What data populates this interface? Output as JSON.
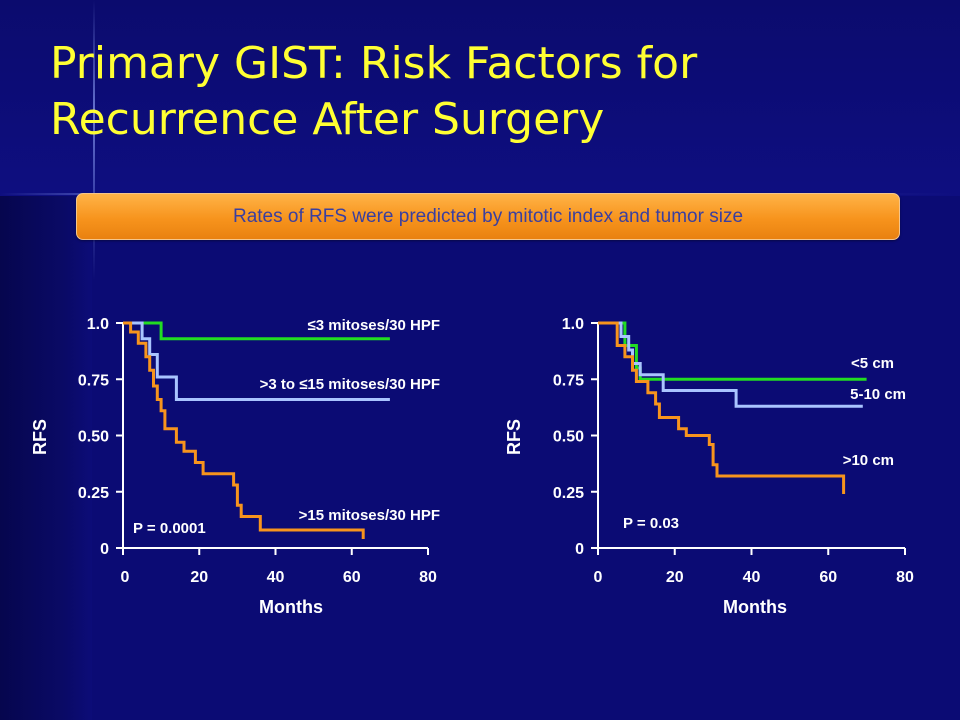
{
  "title": "Primary GIST: Risk Factors for Recurrence After Surgery",
  "banner": "Rates of RFS were predicted by mitotic index and tumor size",
  "colors": {
    "green": "#22dd22",
    "lightblue": "#a9c4ff",
    "orange": "#f7941d",
    "title": "#ffff33"
  },
  "chart_data": [
    {
      "type": "line",
      "subtype": "kaplan-meier step",
      "xlabel": "Months",
      "ylabel": "RFS",
      "xlim": [
        0,
        80
      ],
      "ylim": [
        0,
        1.0
      ],
      "x_tick_labels": [
        "0",
        "20",
        "40",
        "60",
        "80"
      ],
      "y_tick_labels": [
        "0",
        "0.25",
        "0.50",
        "0.75",
        "1.0"
      ],
      "p_value": "P = 0.0001",
      "series": [
        {
          "name": "≤3 mitoses/30 HPF",
          "color": "green",
          "points": [
            [
              0,
              1.0
            ],
            [
              10,
              1.0
            ],
            [
              10,
              0.93
            ],
            [
              70,
              0.93
            ]
          ]
        },
        {
          "name": ">3 to ≤15 mitoses/30 HPF",
          "color": "lightblue",
          "points": [
            [
              0,
              1.0
            ],
            [
              5,
              1.0
            ],
            [
              5,
              0.93
            ],
            [
              7,
              0.93
            ],
            [
              7,
              0.86
            ],
            [
              9,
              0.86
            ],
            [
              9,
              0.76
            ],
            [
              14,
              0.76
            ],
            [
              14,
              0.66
            ],
            [
              70,
              0.66
            ]
          ]
        },
        {
          "name": ">15 mitoses/30 HPF",
          "color": "orange",
          "points": [
            [
              0,
              1.0
            ],
            [
              2,
              1.0
            ],
            [
              2,
              0.96
            ],
            [
              4,
              0.96
            ],
            [
              4,
              0.91
            ],
            [
              6,
              0.91
            ],
            [
              6,
              0.85
            ],
            [
              7,
              0.85
            ],
            [
              7,
              0.79
            ],
            [
              8,
              0.79
            ],
            [
              8,
              0.72
            ],
            [
              9,
              0.72
            ],
            [
              9,
              0.66
            ],
            [
              10,
              0.66
            ],
            [
              10,
              0.61
            ],
            [
              11,
              0.61
            ],
            [
              11,
              0.53
            ],
            [
              14,
              0.53
            ],
            [
              14,
              0.47
            ],
            [
              16,
              0.47
            ],
            [
              16,
              0.43
            ],
            [
              19,
              0.43
            ],
            [
              19,
              0.38
            ],
            [
              21,
              0.38
            ],
            [
              21,
              0.33
            ],
            [
              29,
              0.33
            ],
            [
              29,
              0.28
            ],
            [
              30,
              0.28
            ],
            [
              30,
              0.19
            ],
            [
              31,
              0.19
            ],
            [
              31,
              0.14
            ],
            [
              36,
              0.14
            ],
            [
              36,
              0.08
            ],
            [
              63,
              0.08
            ],
            [
              63,
              0.04
            ]
          ]
        }
      ]
    },
    {
      "type": "line",
      "subtype": "kaplan-meier step",
      "xlabel": "Months",
      "ylabel": "RFS",
      "xlim": [
        0,
        80
      ],
      "ylim": [
        0,
        1.0
      ],
      "x_tick_labels": [
        "0",
        "20",
        "40",
        "60",
        "80"
      ],
      "y_tick_labels": [
        "0",
        "0.25",
        "0.50",
        "0.75",
        "1.0"
      ],
      "p_value": "P = 0.03",
      "series": [
        {
          "name": "<5 cm",
          "color": "green",
          "points": [
            [
              0,
              1.0
            ],
            [
              7,
              1.0
            ],
            [
              7,
              0.9
            ],
            [
              10,
              0.9
            ],
            [
              10,
              0.8
            ],
            [
              11,
              0.8
            ],
            [
              11,
              0.75
            ],
            [
              70,
              0.75
            ]
          ]
        },
        {
          "name": "5-10 cm",
          "color": "lightblue",
          "points": [
            [
              0,
              1.0
            ],
            [
              6,
              1.0
            ],
            [
              6,
              0.94
            ],
            [
              8,
              0.94
            ],
            [
              8,
              0.88
            ],
            [
              9,
              0.88
            ],
            [
              9,
              0.82
            ],
            [
              11,
              0.82
            ],
            [
              11,
              0.77
            ],
            [
              17,
              0.77
            ],
            [
              17,
              0.7
            ],
            [
              36,
              0.7
            ],
            [
              36,
              0.63
            ],
            [
              69,
              0.63
            ]
          ]
        },
        {
          "name": ">10 cm",
          "color": "orange",
          "points": [
            [
              0,
              1.0
            ],
            [
              5,
              1.0
            ],
            [
              5,
              0.9
            ],
            [
              7,
              0.9
            ],
            [
              7,
              0.85
            ],
            [
              9,
              0.85
            ],
            [
              9,
              0.79
            ],
            [
              10,
              0.79
            ],
            [
              10,
              0.74
            ],
            [
              13,
              0.74
            ],
            [
              13,
              0.69
            ],
            [
              15,
              0.69
            ],
            [
              15,
              0.64
            ],
            [
              16,
              0.64
            ],
            [
              16,
              0.58
            ],
            [
              21,
              0.58
            ],
            [
              21,
              0.53
            ],
            [
              23,
              0.53
            ],
            [
              23,
              0.5
            ],
            [
              29,
              0.5
            ],
            [
              29,
              0.46
            ],
            [
              30,
              0.46
            ],
            [
              30,
              0.37
            ],
            [
              31,
              0.37
            ],
            [
              31,
              0.32
            ],
            [
              64,
              0.32
            ],
            [
              64,
              0.24
            ]
          ]
        }
      ]
    }
  ]
}
